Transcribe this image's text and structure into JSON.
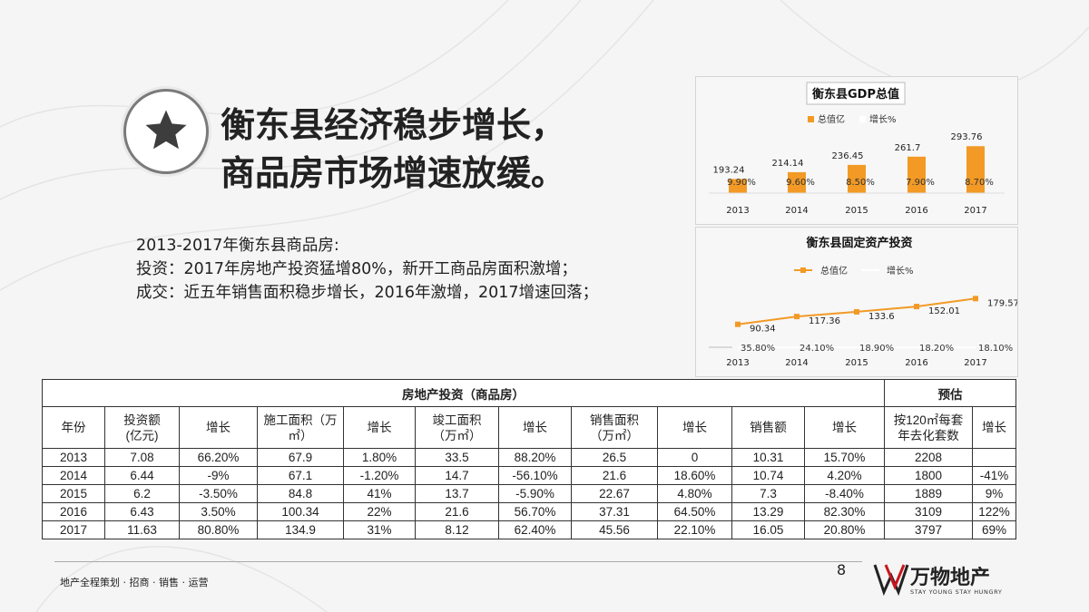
{
  "headline": [
    "衡东县经济稳步增长，",
    "商品房市场增速放缓。"
  ],
  "intro": [
    "2013-2017年衡东县商品房:",
    "投资：2017年房地产投资猛增80%，新开工商品房面积激增；",
    "成交：近五年销售面积稳步增长，2016年激增，2017增速回落；"
  ],
  "chart_data": [
    {
      "type": "bar",
      "title": "衡东县GDP总值",
      "categories": [
        "2013",
        "2014",
        "2015",
        "2016",
        "2017"
      ],
      "series": [
        {
          "name": "总值亿",
          "values": [
            193.24,
            214.14,
            236.45,
            261.7,
            293.76
          ],
          "color": "#f29a25"
        },
        {
          "name": "增长%",
          "values": [
            "9.90%",
            "9.60%",
            "8.50%",
            "7.90%",
            "8.70%"
          ],
          "color": "#ffffff"
        }
      ],
      "legend": "top"
    },
    {
      "type": "line",
      "title": "衡东县固定资产投资",
      "categories": [
        "2013",
        "2014",
        "2015",
        "2016",
        "2017"
      ],
      "series": [
        {
          "name": "总值亿",
          "values": [
            90.34,
            117.36,
            133.6,
            152.01,
            179.57
          ],
          "color": "#f29a25"
        },
        {
          "name": "增长%",
          "values": [
            "35.80%",
            "24.10%",
            "18.90%",
            "18.20%",
            "18.10%"
          ],
          "color": "#ffffff"
        }
      ],
      "legend": "top"
    },
    {
      "type": "table",
      "group_headers": [
        "房地产投资（商品房）",
        "预估"
      ],
      "columns": [
        "年份",
        "投资额\n(亿元)",
        "增长",
        "施工面积（万㎡）",
        "增长",
        "竣工面积\n（万㎡）",
        "增长",
        "销售面积\n（万㎡）",
        "增长",
        "销售额",
        "增长",
        "按120㎡每套\n年去化套数",
        "增长"
      ],
      "rows": [
        [
          "2013",
          "7.08",
          "66.20%",
          "67.9",
          "1.80%",
          "33.5",
          "88.20%",
          "26.5",
          "0",
          "10.31",
          "15.70%",
          "2208",
          ""
        ],
        [
          "2014",
          "6.44",
          "-9%",
          "67.1",
          "-1.20%",
          "14.7",
          "-56.10%",
          "21.6",
          "18.60%",
          "10.74",
          "4.20%",
          "1800",
          "-41%"
        ],
        [
          "2015",
          "6.2",
          "-3.50%",
          "84.8",
          "41%",
          "13.7",
          "-5.90%",
          "22.67",
          "4.80%",
          "7.3",
          "-8.40%",
          "1889",
          "9%"
        ],
        [
          "2016",
          "6.43",
          "3.50%",
          "100.34",
          "22%",
          "21.6",
          "56.70%",
          "37.31",
          "64.50%",
          "13.29",
          "82.30%",
          "3109",
          "122%"
        ],
        [
          "2017",
          "11.63",
          "80.80%",
          "134.9",
          "31%",
          "8.12",
          "62.40%",
          "45.56",
          "22.10%",
          "16.05",
          "20.80%",
          "3797",
          "69%"
        ]
      ]
    }
  ],
  "footer": {
    "text": "地产全程策划 · 招商 · 销售 · 运营",
    "page": "8"
  },
  "logo": {
    "name": "万物地产",
    "slogan": "STAY YOUNG STAY HUNGRY"
  }
}
